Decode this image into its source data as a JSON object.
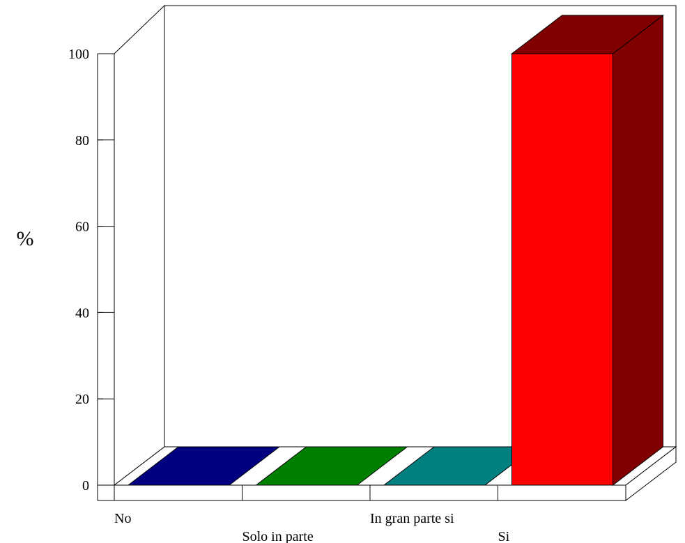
{
  "chart_data": {
    "type": "bar",
    "categories": [
      "No",
      "Solo in parte",
      "In gran parte si",
      "Si"
    ],
    "values": [
      0,
      0,
      0,
      100
    ],
    "xlabel": "",
    "ylabel": "%",
    "ylim": [
      0,
      100
    ],
    "yticks": [
      "0",
      "20",
      "40",
      "60",
      "80",
      "100"
    ],
    "grid": false,
    "colors": {
      "front": [
        "#000080",
        "#008000",
        "#008080",
        "#ff0000"
      ],
      "side": [
        "#000040",
        "#004000",
        "#004040",
        "#800000"
      ]
    }
  }
}
